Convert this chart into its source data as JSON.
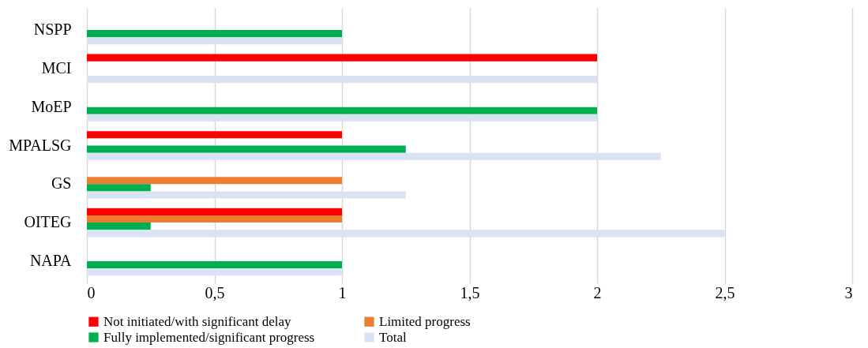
{
  "chart_data": {
    "type": "bar",
    "orientation": "horizontal",
    "categories": [
      "NSPP",
      "MCI",
      "MoEP",
      "MPALSG",
      "GS",
      "OITEG",
      "NAPA"
    ],
    "series": [
      {
        "name": "Not initiated/with significant delay",
        "color": "#ff0000",
        "values": [
          null,
          2,
          null,
          1,
          null,
          1,
          null
        ]
      },
      {
        "name": "Limited progress",
        "color": "#ed7d31",
        "values": [
          null,
          null,
          null,
          null,
          1,
          1,
          null
        ]
      },
      {
        "name": "Fully implemented/significant progress",
        "color": "#00b050",
        "values": [
          1,
          null,
          2,
          1.25,
          0.25,
          0.25,
          1
        ]
      },
      {
        "name": "Total",
        "color": "#dae3f3",
        "values": [
          1,
          2,
          2,
          2.25,
          1.25,
          2.5,
          1
        ]
      }
    ],
    "xlim": [
      0,
      3
    ],
    "xticks": [
      0,
      {
        "value": 0.5,
        "label": "0,5"
      },
      1,
      {
        "value": 1.5,
        "label": "1,5"
      },
      2,
      {
        "value": 2.5,
        "label": "2,5"
      },
      3
    ],
    "grid": "x",
    "legend": "bottom"
  }
}
